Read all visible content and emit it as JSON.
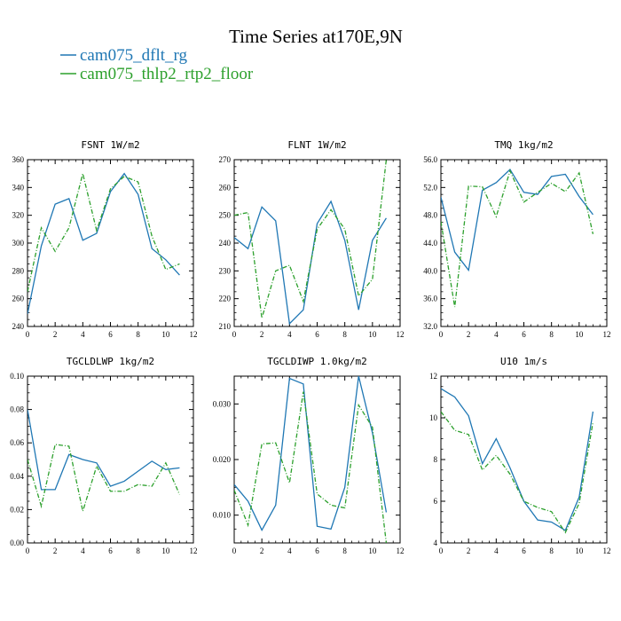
{
  "figure": {
    "title": "Time Series at170E,9N",
    "legend": [
      {
        "label": "cam075_dflt_rg",
        "color": "#1f77b4",
        "dash": false
      },
      {
        "label": "cam075_thlp2_rtp2_floor",
        "color": "#2ca02c",
        "dash": true
      }
    ]
  },
  "chart_data": [
    {
      "type": "line",
      "title": "FSNT  1W/m2",
      "xlim": [
        0,
        12
      ],
      "ylim": [
        240,
        360
      ],
      "xticks": [
        0,
        2,
        4,
        6,
        8,
        10,
        12
      ],
      "yticks": [
        240,
        260,
        280,
        300,
        320,
        340,
        360
      ],
      "ytick_labels": [
        "240",
        "260",
        "280",
        "300",
        "320",
        "340",
        "360"
      ],
      "x": [
        0,
        1,
        2,
        3,
        4,
        5,
        6,
        7,
        8,
        9,
        10,
        11
      ],
      "series": [
        {
          "name": "cam075_dflt_rg",
          "values": [
            249,
            298,
            328,
            332,
            302,
            307,
            337,
            350,
            335,
            296,
            288,
            277
          ]
        },
        {
          "name": "cam075_thlp2_rtp2_floor",
          "values": [
            265,
            311,
            294,
            311,
            350,
            309,
            339,
            348,
            344,
            305,
            281,
            285
          ]
        }
      ]
    },
    {
      "type": "line",
      "title": "FLNT  1W/m2",
      "xlim": [
        0,
        12
      ],
      "ylim": [
        210,
        270
      ],
      "xticks": [
        0,
        2,
        4,
        6,
        8,
        10,
        12
      ],
      "yticks": [
        210,
        220,
        230,
        240,
        250,
        260,
        270
      ],
      "ytick_labels": [
        "210",
        "220",
        "230",
        "240",
        "250",
        "260",
        "270"
      ],
      "x": [
        0,
        1,
        2,
        3,
        4,
        5,
        6,
        7,
        8,
        9,
        10,
        11
      ],
      "series": [
        {
          "name": "cam075_dflt_rg",
          "values": [
            242,
            238,
            253,
            248,
            211,
            216,
            247,
            255,
            241,
            216,
            241,
            249
          ]
        },
        {
          "name": "cam075_thlp2_rtp2_floor",
          "values": [
            250,
            251,
            213,
            230,
            232,
            219,
            245,
            252,
            245,
            221,
            227,
            270
          ]
        }
      ]
    },
    {
      "type": "line",
      "title": "TMQ  1kg/m2",
      "xlim": [
        0,
        12
      ],
      "ylim": [
        32,
        56
      ],
      "xticks": [
        0,
        2,
        4,
        6,
        8,
        10,
        12
      ],
      "yticks": [
        32,
        36,
        40,
        44,
        48,
        52,
        56
      ],
      "ytick_labels": [
        "32.0",
        "36.0",
        "40.0",
        "44.0",
        "48.0",
        "52.0",
        "56.0"
      ],
      "x": [
        0,
        1,
        2,
        3,
        4,
        5,
        6,
        7,
        8,
        9,
        10,
        11
      ],
      "series": [
        {
          "name": "cam075_dflt_rg",
          "values": [
            50.6,
            42.7,
            40.1,
            51.6,
            52.7,
            54.6,
            51.3,
            51.0,
            53.6,
            53.9,
            50.7,
            48.1
          ]
        },
        {
          "name": "cam075_thlp2_rtp2_floor",
          "values": [
            47.1,
            34.8,
            52.2,
            52.1,
            47.8,
            54.4,
            49.9,
            51.3,
            52.6,
            51.4,
            54.1,
            45.3
          ]
        }
      ]
    },
    {
      "type": "line",
      "title": "TGCLDLWP  1kg/m2",
      "xlim": [
        0,
        12
      ],
      "ylim": [
        0,
        0.1
      ],
      "xticks": [
        0,
        2,
        4,
        6,
        8,
        10,
        12
      ],
      "yticks": [
        0,
        0.02,
        0.04,
        0.06,
        0.08,
        0.1
      ],
      "ytick_labels": [
        "0.00",
        "0.02",
        "0.04",
        "0.06",
        "0.08",
        "0.10"
      ],
      "x": [
        0,
        1,
        2,
        3,
        4,
        5,
        6,
        7,
        8,
        9,
        10,
        11
      ],
      "series": [
        {
          "name": "cam075_dflt_rg",
          "values": [
            0.08,
            0.032,
            0.032,
            0.053,
            0.05,
            0.048,
            0.034,
            0.037,
            0.043,
            0.049,
            0.044,
            0.045
          ]
        },
        {
          "name": "cam075_thlp2_rtp2_floor",
          "values": [
            0.05,
            0.022,
            0.059,
            0.058,
            0.019,
            0.046,
            0.031,
            0.031,
            0.035,
            0.034,
            0.048,
            0.029
          ]
        }
      ]
    },
    {
      "type": "line",
      "title": "TGCLDIWP  1.0kg/m2",
      "xlim": [
        0,
        12
      ],
      "ylim": [
        0.005,
        0.035
      ],
      "xticks": [
        0,
        2,
        4,
        6,
        8,
        10,
        12
      ],
      "yticks": [
        0.01,
        0.02,
        0.03
      ],
      "ytick_labels": [
        "0.010",
        "0.020",
        "0.030"
      ],
      "x": [
        0,
        1,
        2,
        3,
        4,
        5,
        6,
        7,
        8,
        9,
        10,
        11
      ],
      "series": [
        {
          "name": "cam075_dflt_rg",
          "values": [
            0.0155,
            0.0125,
            0.0073,
            0.0118,
            0.0346,
            0.0336,
            0.008,
            0.0075,
            0.015,
            0.035,
            0.0248,
            0.0105
          ]
        },
        {
          "name": "cam075_thlp2_rtp2_floor",
          "values": [
            0.0145,
            0.0082,
            0.0228,
            0.023,
            0.0158,
            0.0322,
            0.0138,
            0.0118,
            0.0113,
            0.0298,
            0.0258,
            0.005
          ]
        }
      ]
    },
    {
      "type": "line",
      "title": "U10  1m/s",
      "xlim": [
        0,
        12
      ],
      "ylim": [
        4,
        12
      ],
      "xticks": [
        0,
        2,
        4,
        6,
        8,
        10,
        12
      ],
      "yticks": [
        4,
        6,
        8,
        10,
        12
      ],
      "ytick_labels": [
        "4",
        "6",
        "8",
        "10",
        "12"
      ],
      "x": [
        0,
        1,
        2,
        3,
        4,
        5,
        6,
        7,
        8,
        9,
        10,
        11
      ],
      "series": [
        {
          "name": "cam075_dflt_rg",
          "values": [
            11.4,
            11.0,
            10.1,
            7.8,
            9.0,
            7.6,
            6.0,
            5.1,
            5.0,
            4.6,
            6.2,
            10.3
          ]
        },
        {
          "name": "cam075_thlp2_rtp2_floor",
          "values": [
            10.3,
            9.4,
            9.2,
            7.5,
            8.2,
            7.3,
            6.0,
            5.7,
            5.5,
            4.5,
            5.9,
            9.8
          ]
        }
      ]
    }
  ]
}
